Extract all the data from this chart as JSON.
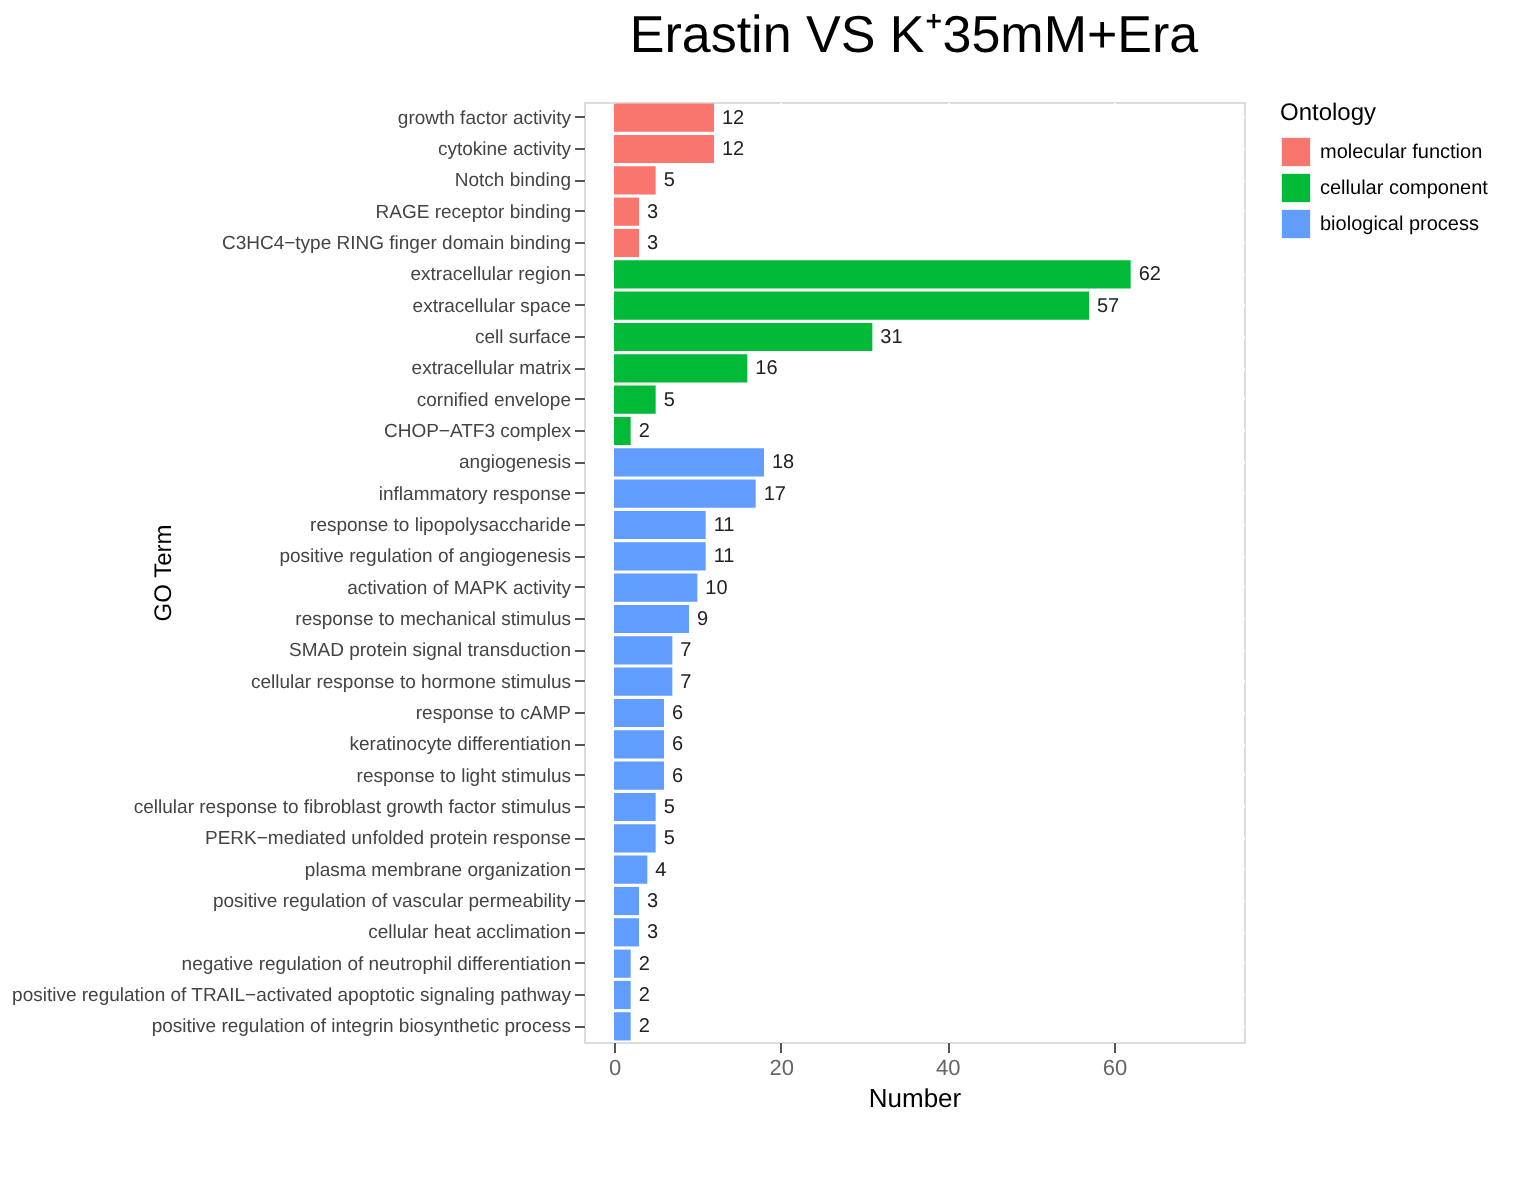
{
  "chart_data": {
    "type": "bar",
    "orientation": "horizontal",
    "title": "Erastin VS K⁺35mM+Era",
    "xlabel": "Number",
    "ylabel": "GO Term",
    "legend_title": "Ontology",
    "legend": "right",
    "grid": true,
    "data_labels": true,
    "categories": [
      "growth factor activity",
      "cytokine activity",
      "Notch binding",
      "RAGE receptor binding",
      "C3HC4−type RING finger domain binding",
      "extracellular region",
      "extracellular space",
      "cell surface",
      "extracellular matrix",
      "cornified envelope",
      "CHOP−ATF3 complex",
      "angiogenesis",
      "inflammatory response",
      "response to lipopolysaccharide",
      "positive regulation of angiogenesis",
      "activation of MAPK activity",
      "response to mechanical stimulus",
      "SMAD protein signal transduction",
      "cellular response to hormone stimulus",
      "response to cAMP",
      "keratinocyte differentiation",
      "response to light stimulus",
      "cellular response to fibroblast growth factor stimulus",
      "PERK−mediated unfolded protein response",
      "plasma membrane organization",
      "positive regulation of vascular permeability",
      "cellular heat acclimation",
      "negative regulation of neutrophil differentiation",
      "positive regulation of TRAIL−activated apoptotic signaling pathway",
      "positive regulation of integrin biosynthetic process"
    ],
    "series": [
      {
        "name": "molecular function",
        "color": "#f8766d",
        "values": [
          12,
          12,
          5,
          3,
          3,
          null,
          null,
          null,
          null,
          null,
          null,
          null,
          null,
          null,
          null,
          null,
          null,
          null,
          null,
          null,
          null,
          null,
          null,
          null,
          null,
          null,
          null,
          null,
          null,
          null
        ]
      },
      {
        "name": "cellular component",
        "color": "#00ba38",
        "values": [
          null,
          null,
          null,
          null,
          null,
          62,
          57,
          31,
          16,
          5,
          2,
          null,
          null,
          null,
          null,
          null,
          null,
          null,
          null,
          null,
          null,
          null,
          null,
          null,
          null,
          null,
          null,
          null,
          null,
          null
        ]
      },
      {
        "name": "biological process",
        "color": "#619cff",
        "values": [
          null,
          null,
          null,
          null,
          null,
          null,
          null,
          null,
          null,
          null,
          null,
          18,
          17,
          11,
          11,
          10,
          9,
          7,
          7,
          6,
          6,
          6,
          5,
          5,
          4,
          3,
          3,
          2,
          2,
          2
        ]
      }
    ],
    "xlim": [
      -3.6,
      75.6
    ],
    "xticks": [
      0,
      20,
      40,
      60
    ]
  }
}
